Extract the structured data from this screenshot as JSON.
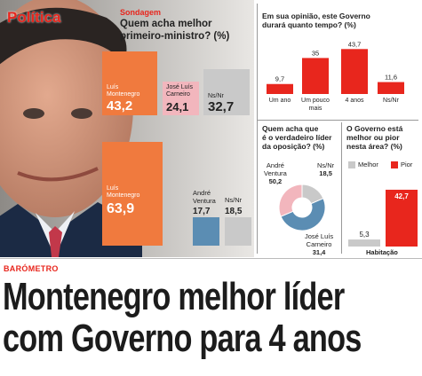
{
  "section": "Política",
  "kicker": "BARÓMETRO",
  "headline": [
    "Montenegro melhor líder",
    "com Governo para 4 anos"
  ],
  "colors": {
    "red": "#e8261d",
    "orange": "#f07a3e",
    "pink": "#f2b6bd",
    "gray": "#c9c9c9",
    "blue": "#5b8db3",
    "lightblue": "#b9cfdd"
  },
  "panel1": {
    "tag": "Sondagem",
    "question": [
      "Quem acha melhor",
      "primeiro-ministro? (%)"
    ],
    "chart1": [
      {
        "label": [
          "Luís",
          "Montenegro"
        ],
        "value": "43,2"
      },
      {
        "label": [
          "José Luís",
          "Carneiro"
        ],
        "value": "24,1"
      },
      {
        "label": [
          "Ns/Nr"
        ],
        "value": "32,7"
      }
    ],
    "chart2": [
      {
        "label": [
          "Luís",
          "Montenegro"
        ],
        "value": "63,9"
      },
      {
        "label": [
          "André",
          "Ventura"
        ],
        "value": "17,7"
      },
      {
        "label": [
          "Ns/Nr"
        ],
        "value": "18,5"
      }
    ]
  },
  "chart_data": [
    {
      "type": "bar",
      "title": "Quem acha melhor primeiro-ministro? (%)",
      "categories": [
        "Luís Montenegro",
        "José Luís Carneiro",
        "Ns/Nr"
      ],
      "values": [
        43.2,
        24.1,
        32.7
      ]
    },
    {
      "type": "bar",
      "categories": [
        "Luís Montenegro",
        "André Ventura",
        "Ns/Nr"
      ],
      "values": [
        63.9,
        17.7,
        18.5
      ]
    },
    {
      "type": "bar",
      "title": "Em sua opinião, este Governo durará quanto tempo? (%)",
      "categories": [
        "Um ano",
        "Um pouco mais",
        "4 anos",
        "Ns/Nr"
      ],
      "values": [
        9.7,
        35,
        43.7,
        11.6
      ],
      "ylim": [
        0,
        50
      ]
    },
    {
      "type": "pie",
      "title": "Quem acha que é o verdadeiro líder da oposição? (%)",
      "categories": [
        "André Ventura",
        "José Luís Carneiro",
        "Ns/Nr"
      ],
      "values": [
        50.2,
        31.4,
        18.5
      ]
    },
    {
      "type": "bar",
      "title": "O Governo está melhor ou pior nesta área? (%)",
      "categories": [
        "Habitação"
      ],
      "series": [
        {
          "name": "Melhor",
          "values": [
            5.3
          ]
        },
        {
          "name": "Pior",
          "values": [
            42.7
          ]
        }
      ],
      "ylim": [
        0,
        50
      ]
    }
  ],
  "panel2": {
    "question": [
      "Em sua opinião, este Governo",
      "durará quanto tempo? (%)"
    ],
    "bars": [
      {
        "label": [
          "Um ano"
        ],
        "value": "9,7"
      },
      {
        "label": [
          "Um pouco",
          "mais"
        ],
        "value": "35"
      },
      {
        "label": [
          "4 anos"
        ],
        "value": "43,7"
      },
      {
        "label": [
          "Ns/Nr"
        ],
        "value": "11,6"
      }
    ]
  },
  "panel3": {
    "question": [
      "Quem acha que",
      "é o verdadeiro líder",
      "da oposição? (%)"
    ],
    "labels": [
      {
        "label": [
          "André",
          "Ventura"
        ],
        "value": "50,2"
      },
      {
        "label": [
          "José Luís",
          "Carneiro"
        ],
        "value": "31,4"
      },
      {
        "label": [
          "Ns/Nr"
        ],
        "value": "18,5"
      }
    ]
  },
  "panel4": {
    "question": [
      "O Governo está",
      "melhor ou pior",
      "nesta área? (%)"
    ],
    "legend": [
      "Melhor",
      "Pior"
    ],
    "bars": [
      {
        "value": "5,3"
      },
      {
        "value": "42,7"
      }
    ],
    "category": "Habitação"
  }
}
